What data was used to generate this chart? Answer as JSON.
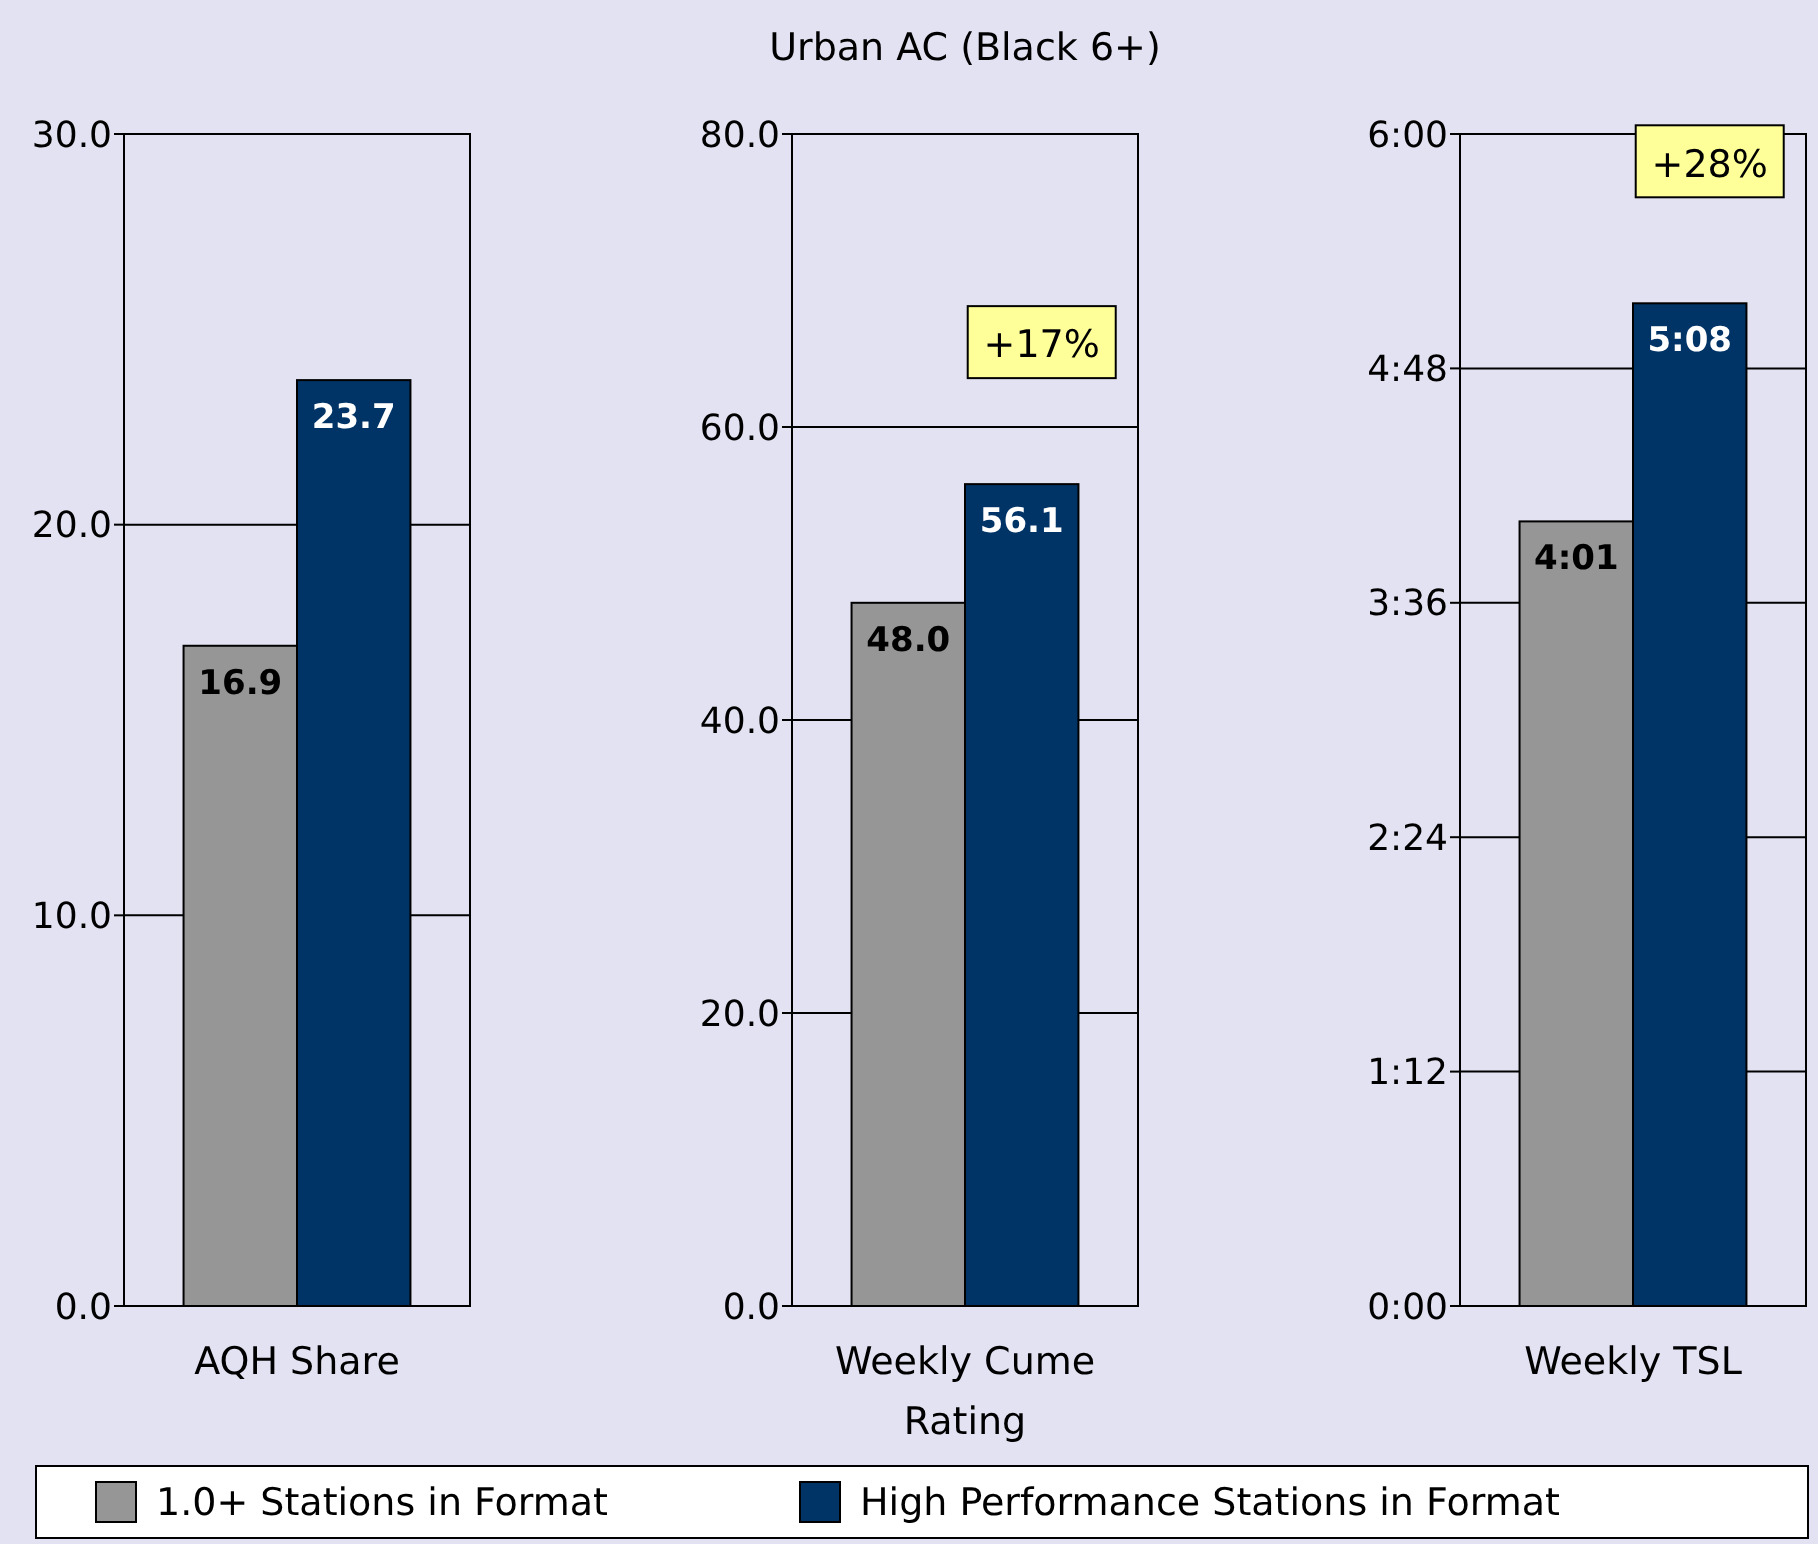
{
  "chart_data": [
    {
      "type": "bar",
      "categories": [
        "AQH Share"
      ],
      "ylim": [
        0,
        30
      ],
      "yticks": [
        {
          "value": 0,
          "label": "0.0"
        },
        {
          "value": 10,
          "label": "10.0"
        },
        {
          "value": 20,
          "label": "20.0"
        },
        {
          "value": 30,
          "label": "30.0"
        }
      ],
      "grid": "y",
      "legend": "bottom",
      "series": [
        {
          "name": "1.0+ Stations in Format",
          "color": "#969696",
          "values": [
            16.9
          ],
          "value_labels": [
            "16.9"
          ]
        },
        {
          "name": "High Performance Stations in Format",
          "color": "#003366",
          "values": [
            23.7
          ],
          "value_labels": [
            "23.7"
          ]
        }
      ]
    },
    {
      "type": "bar",
      "title": "Urban AC (Black 6+)",
      "categories": [
        "Weekly Cume Rating"
      ],
      "ylim": [
        0,
        80
      ],
      "yticks": [
        {
          "value": 0,
          "label": "0.0"
        },
        {
          "value": 20,
          "label": "20.0"
        },
        {
          "value": 40,
          "label": "40.0"
        },
        {
          "value": 60,
          "label": "60.0"
        },
        {
          "value": 80,
          "label": "80.0"
        }
      ],
      "grid": "y",
      "annotations": [
        "+17%"
      ],
      "series": [
        {
          "color": "#969696",
          "values": [
            48.0
          ],
          "value_labels": [
            "48.0"
          ]
        },
        {
          "color": "#003366",
          "values": [
            56.1
          ],
          "value_labels": [
            "56.1"
          ]
        }
      ]
    },
    {
      "type": "bar",
      "categories": [
        "Weekly TSL"
      ],
      "ylim": [
        0,
        6
      ],
      "yticks": [
        {
          "value": 0,
          "label": "0:00"
        },
        {
          "value": 1.2,
          "label": "1:12"
        },
        {
          "value": 2.4,
          "label": "2:24"
        },
        {
          "value": 3.6,
          "label": "3:36"
        },
        {
          "value": 4.8,
          "label": "4:48"
        },
        {
          "value": 6,
          "label": "6:00"
        }
      ],
      "grid": "y",
      "annotations": [
        "+28%"
      ],
      "series": [
        {
          "color": "#969696",
          "values": [
            4.0167
          ],
          "value_labels": [
            "4:01"
          ]
        },
        {
          "color": "#003366",
          "values": [
            5.1333
          ],
          "value_labels": [
            "5:08"
          ]
        }
      ]
    }
  ]
}
